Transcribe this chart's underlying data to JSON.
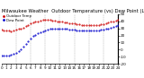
{
  "title": "Milwaukee Weather  Outdoor Temperature (vs) Dew Point (Last 24 Hours)",
  "temp_color": "#cc0000",
  "dew_color": "#0000cc",
  "background_color": "#ffffff",
  "grid_color": "#888888",
  "ylim": [
    -20,
    50
  ],
  "xlim": [
    0,
    24
  ],
  "temp_x": [
    0,
    0.5,
    1,
    1.5,
    2,
    2.5,
    3,
    3.5,
    4,
    4.5,
    5,
    5.5,
    6,
    6.5,
    7,
    7.5,
    8,
    8.5,
    9,
    9.5,
    10,
    10.5,
    11,
    11.5,
    12,
    12.5,
    13,
    13.5,
    14,
    14.5,
    15,
    15.5,
    16,
    16.5,
    17,
    17.5,
    18,
    18.5,
    19,
    19.5,
    20,
    20.5,
    21,
    21.5,
    22,
    22.5,
    23,
    23.5,
    24
  ],
  "temp_y": [
    28,
    27.5,
    27,
    26.5,
    26,
    27,
    28,
    29,
    30,
    31,
    33,
    35,
    37,
    38,
    39,
    40,
    41,
    42,
    42,
    42,
    42,
    41,
    41,
    40,
    40,
    39,
    38,
    38,
    37,
    37,
    37,
    36,
    36,
    35,
    35,
    35,
    35,
    35,
    35,
    35,
    35,
    36,
    36,
    37,
    38,
    39,
    40,
    41,
    42
  ],
  "dew_x": [
    0,
    0.5,
    1,
    1.5,
    2,
    2.5,
    3,
    3.5,
    4,
    4.5,
    5,
    5.5,
    6,
    6.5,
    7,
    7.5,
    8,
    8.5,
    9,
    9.5,
    10,
    10.5,
    11,
    11.5,
    12,
    12.5,
    13,
    13.5,
    14,
    14.5,
    15,
    15.5,
    16,
    16.5,
    17,
    17.5,
    18,
    18.5,
    19,
    19.5,
    20,
    20.5,
    21,
    21.5,
    22,
    22.5,
    23,
    23.5,
    24
  ],
  "dew_y": [
    -8,
    -8,
    -8,
    -8,
    -7,
    -6,
    -4,
    -2,
    0,
    4,
    8,
    12,
    16,
    19,
    21,
    23,
    25,
    26,
    27,
    28,
    29,
    29,
    30,
    30,
    30,
    30,
    29,
    29,
    28,
    28,
    28,
    27,
    27,
    27,
    27,
    27,
    27,
    27,
    27,
    27,
    27,
    28,
    28,
    29,
    30,
    31,
    32,
    33,
    34
  ],
  "ytick_vals": [
    50,
    40,
    30,
    20,
    10,
    0,
    -10,
    -20
  ],
  "xtick_positions": [
    0,
    1,
    2,
    3,
    4,
    5,
    6,
    7,
    8,
    9,
    10,
    11,
    12,
    13,
    14,
    15,
    16,
    17,
    18,
    19,
    20,
    21,
    22,
    23,
    24
  ],
  "grid_x_positions": [
    3,
    6,
    9,
    12,
    15,
    18,
    21,
    24
  ],
  "title_fontsize": 3.8,
  "tick_fontsize": 3.0,
  "legend_fontsize": 2.8,
  "legend_labels": [
    "Outdoor Temp",
    "Dew Point"
  ],
  "legend_colors": [
    "#cc0000",
    "#0000cc"
  ],
  "line_linewidth": 0.6,
  "marker_size": 1.0
}
